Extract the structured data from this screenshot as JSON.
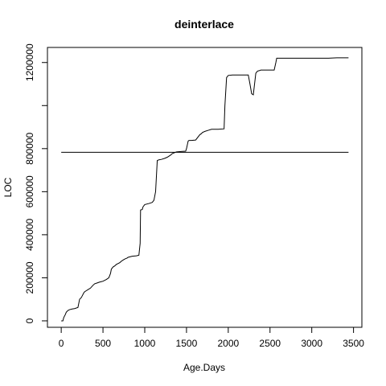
{
  "chart_data": {
    "type": "line",
    "title": "deinterlace",
    "xlabel": "Age.Days",
    "ylabel": "LOC",
    "xlim": [
      -165,
      3600
    ],
    "ylim": [
      -30000,
      1270000
    ],
    "x_ticks": [
      0,
      500,
      1000,
      1500,
      2000,
      2500,
      3000,
      3500
    ],
    "x_tick_labels": [
      "0",
      "500",
      "1000",
      "1500",
      "2000",
      "2500",
      "3000",
      "3500"
    ],
    "y_ticks": [
      0,
      200000,
      400000,
      600000,
      800000,
      1000000,
      1200000
    ],
    "y_tick_labels": [
      "0",
      "200000",
      "400000",
      "600000",
      "800000",
      "",
      "1200000"
    ],
    "grid": false,
    "series": [
      {
        "x": [
          0,
          20,
          30,
          50,
          60,
          80,
          100,
          130,
          160,
          200,
          220,
          240,
          250,
          270,
          280,
          300,
          320,
          350,
          380,
          400,
          430,
          460,
          500,
          540,
          570,
          590,
          600,
          620,
          640,
          660,
          700,
          730,
          760,
          790,
          800,
          850,
          900,
          930,
          945,
          950,
          970,
          980,
          1000,
          1050,
          1090,
          1110,
          1130,
          1150,
          1170,
          1200,
          1240,
          1270,
          1310,
          1330,
          1350,
          1380,
          1450,
          1490,
          1500,
          1520,
          1530,
          1560,
          1610,
          1660,
          1680,
          1690,
          1720,
          1760,
          1800,
          1880,
          1950,
          1960,
          1980,
          2000,
          2050,
          2100,
          2150,
          2200,
          2240,
          2260,
          2280,
          2300,
          2330,
          2350,
          2370,
          2390,
          2400,
          2450,
          2500,
          2550,
          2570,
          2580,
          2600,
          2700,
          2800,
          2900,
          3000,
          3100,
          3200,
          3300,
          3440
        ],
        "y": [
          0,
          0,
          15000,
          30000,
          40000,
          48000,
          52000,
          55000,
          57000,
          62000,
          100000,
          108000,
          115000,
          130000,
          135000,
          140000,
          145000,
          152000,
          165000,
          172000,
          176000,
          180000,
          184000,
          192000,
          200000,
          220000,
          240000,
          250000,
          255000,
          262000,
          270000,
          280000,
          287000,
          292000,
          295000,
          300000,
          302000,
          305000,
          360000,
          515000,
          517000,
          530000,
          540000,
          545000,
          550000,
          560000,
          600000,
          745000,
          748000,
          750000,
          755000,
          760000,
          770000,
          777000,
          780000,
          785000,
          787000,
          788000,
          800000,
          835000,
          838000,
          838000,
          840000,
          865000,
          870000,
          875000,
          880000,
          885000,
          890000,
          890000,
          892000,
          1000000,
          1130000,
          1140000,
          1142000,
          1142000,
          1142000,
          1142000,
          1142000,
          1100000,
          1055000,
          1050000,
          1150000,
          1160000,
          1162000,
          1165000,
          1165000,
          1165000,
          1165000,
          1165000,
          1200000,
          1220000,
          1220000,
          1220000,
          1220000,
          1220000,
          1220000,
          1220000,
          1220000,
          1222000,
          1222000
        ]
      }
    ],
    "reference_line": {
      "y": 783000,
      "x": [
        0,
        3440
      ]
    }
  }
}
